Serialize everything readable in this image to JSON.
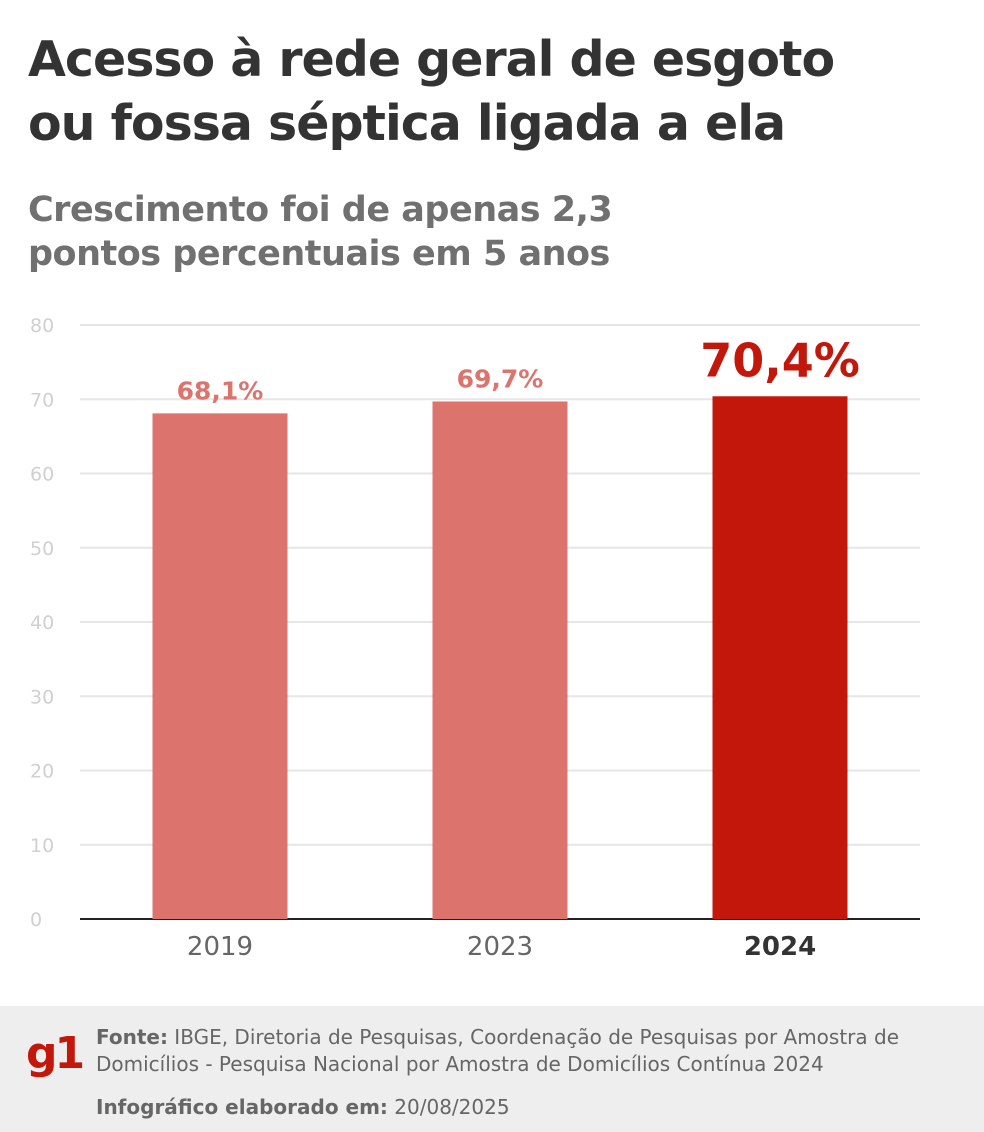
{
  "header": {
    "title_line1": "Acesso à rede geral de esgoto",
    "title_line2": "ou fossa séptica ligada a ela",
    "subtitle_line1": "Crescimento foi de apenas 2,3",
    "subtitle_line2": "pontos percentuais em 5 anos"
  },
  "chart_data": {
    "type": "bar",
    "categories": [
      "2019",
      "2023",
      "2024"
    ],
    "values": [
      68.1,
      69.7,
      70.4
    ],
    "value_labels": [
      "68,1%",
      "69,7%",
      "70,4%"
    ],
    "highlight_index": 2,
    "title": "Acesso à rede geral de esgoto ou fossa séptica ligada a ela",
    "subtitle": "Crescimento foi de apenas 2,3 pontos percentuais em 5 anos",
    "xlabel": "",
    "ylabel": "",
    "ylim": [
      0,
      80
    ],
    "yticks": [
      0,
      10,
      20,
      30,
      40,
      50,
      60,
      70,
      80
    ],
    "grid": true,
    "legend": "none",
    "colors": {
      "bar": "#dc736d",
      "bar_highlight": "#c4170c",
      "grid": "#e6e6e6",
      "axis": "#222222"
    }
  },
  "footer": {
    "logo_text": "g1",
    "source_label": "Fonte:",
    "source_line1": " IBGE, Diretoria de Pesquisas, Coordenação de Pesquisas por Amostra de",
    "source_line2": "Domicílios - Pesquisa Nacional por Amostra de Domicílios Contínua 2024",
    "made_label": "Infográfico elaborado em:",
    "made_date": " 20/08/2025"
  }
}
